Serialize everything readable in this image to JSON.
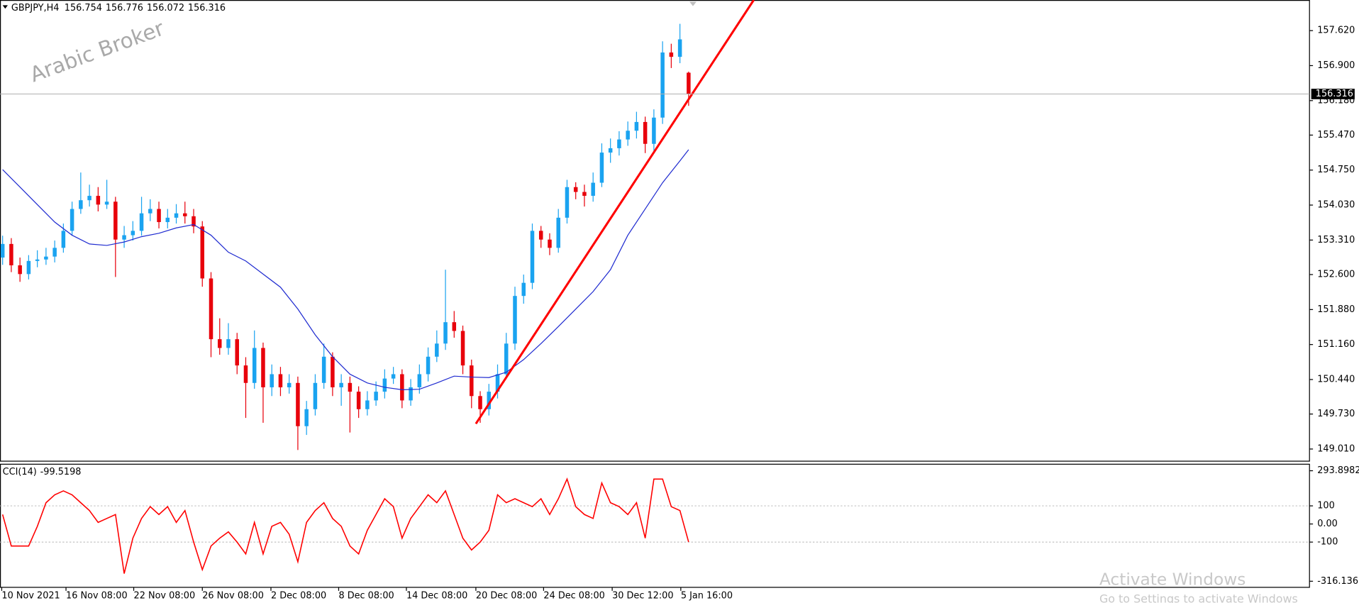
{
  "chart_data": {
    "type": "candlestick",
    "symbol": "GBPJPY,H4",
    "watermark": "Arabic Broker",
    "up_color": "#1aa3f0",
    "down_color": "#e8000b",
    "xlim": [
      -0.3,
      150.5
    ],
    "ylim": [
      148.76,
      158.25
    ],
    "yticks": [
      {
        "value": 157.62,
        "label": "157.620"
      },
      {
        "value": 156.9,
        "label": "156.900"
      },
      {
        "value": 156.18,
        "label": "156.180"
      },
      {
        "value": 155.47,
        "label": "155.470"
      },
      {
        "value": 154.75,
        "label": "154.750"
      },
      {
        "value": 154.03,
        "label": "154.030"
      },
      {
        "value": 153.31,
        "label": "153.310"
      },
      {
        "value": 152.6,
        "label": "152.600"
      },
      {
        "value": 151.88,
        "label": "151.880"
      },
      {
        "value": 151.16,
        "label": "151.160"
      },
      {
        "value": 150.44,
        "label": "150.440"
      },
      {
        "value": 149.73,
        "label": "149.730"
      },
      {
        "value": 149.01,
        "label": "149.010"
      }
    ],
    "xticks": [
      {
        "value": -0.1,
        "label": "10 Nov 2021"
      },
      {
        "value": 7.3,
        "label": "16 Nov 08:00"
      },
      {
        "value": 15.1,
        "label": "22 Nov 08:00"
      },
      {
        "value": 23,
        "label": "26 Nov 08:00"
      },
      {
        "value": 30.9,
        "label": "2 Dec 08:00"
      },
      {
        "value": 38.7,
        "label": "8 Dec 08:00"
      },
      {
        "value": 46.5,
        "label": "14 Dec 08:00"
      },
      {
        "value": 54.5,
        "label": "20 Dec 08:00"
      },
      {
        "value": 62.3,
        "label": "24 Dec 08:00"
      },
      {
        "value": 70.2,
        "label": "30 Dec 12:00"
      },
      {
        "value": 78.1,
        "label": "5 Jan 16:00"
      }
    ],
    "candles": [
      [
        152.95,
        153.4,
        152.8,
        153.23
      ],
      [
        153.23,
        153.35,
        152.65,
        152.79
      ],
      [
        152.79,
        152.95,
        152.45,
        152.61
      ],
      [
        152.61,
        153.0,
        152.5,
        152.88
      ],
      [
        152.88,
        153.1,
        152.75,
        152.91
      ],
      [
        152.91,
        153.15,
        152.8,
        152.97
      ],
      [
        152.97,
        153.3,
        152.85,
        153.15
      ],
      [
        153.15,
        153.65,
        153.05,
        153.5
      ],
      [
        153.5,
        154.1,
        153.4,
        153.95
      ],
      [
        153.95,
        154.7,
        153.85,
        154.13
      ],
      [
        154.13,
        154.45,
        154.0,
        154.22
      ],
      [
        154.22,
        154.4,
        153.9,
        154.04
      ],
      [
        154.04,
        154.55,
        153.95,
        154.1
      ],
      [
        154.1,
        154.2,
        152.55,
        153.32
      ],
      [
        153.32,
        153.6,
        153.15,
        153.41
      ],
      [
        153.41,
        153.7,
        153.3,
        153.5
      ],
      [
        153.5,
        154.2,
        153.4,
        153.86
      ],
      [
        153.86,
        154.15,
        153.7,
        153.95
      ],
      [
        153.95,
        154.1,
        153.55,
        153.68
      ],
      [
        153.68,
        153.95,
        153.55,
        153.77
      ],
      [
        153.77,
        154.05,
        153.65,
        153.86
      ],
      [
        153.86,
        154.1,
        153.65,
        153.8
      ],
      [
        153.8,
        153.95,
        153.45,
        153.59
      ],
      [
        153.59,
        153.7,
        152.35,
        152.52
      ],
      [
        152.52,
        152.65,
        150.9,
        151.27
      ],
      [
        151.27,
        151.7,
        150.95,
        151.09
      ],
      [
        151.09,
        151.6,
        150.95,
        151.27
      ],
      [
        151.27,
        151.4,
        150.55,
        150.73
      ],
      [
        150.73,
        150.9,
        149.65,
        150.37
      ],
      [
        150.37,
        151.45,
        150.25,
        151.09
      ],
      [
        151.09,
        151.2,
        149.55,
        150.28
      ],
      [
        150.28,
        150.75,
        150.1,
        150.55
      ],
      [
        150.55,
        150.7,
        150.1,
        150.28
      ],
      [
        150.28,
        150.55,
        150.15,
        150.37
      ],
      [
        150.37,
        150.5,
        148.99,
        149.48
      ],
      [
        149.48,
        150.0,
        149.3,
        149.83
      ],
      [
        149.83,
        150.55,
        149.7,
        150.37
      ],
      [
        150.37,
        151.18,
        150.25,
        150.91
      ],
      [
        150.91,
        151.0,
        150.1,
        150.28
      ],
      [
        150.28,
        150.55,
        149.9,
        150.37
      ],
      [
        150.37,
        150.5,
        149.35,
        150.19
      ],
      [
        150.19,
        150.3,
        149.65,
        149.83
      ],
      [
        149.83,
        150.2,
        149.7,
        150.01
      ],
      [
        150.01,
        150.4,
        149.9,
        150.19
      ],
      [
        150.19,
        150.65,
        150.05,
        150.46
      ],
      [
        150.46,
        150.7,
        150.35,
        150.55
      ],
      [
        150.55,
        150.65,
        149.85,
        150.01
      ],
      [
        150.01,
        150.45,
        149.9,
        150.28
      ],
      [
        150.28,
        150.75,
        150.15,
        150.55
      ],
      [
        150.55,
        151.1,
        150.4,
        150.91
      ],
      [
        150.91,
        151.45,
        150.8,
        151.18
      ],
      [
        151.18,
        152.7,
        151.05,
        151.62
      ],
      [
        151.62,
        151.85,
        151.3,
        151.44
      ],
      [
        151.44,
        151.55,
        150.55,
        150.73
      ],
      [
        150.73,
        150.85,
        149.85,
        150.1
      ],
      [
        150.1,
        150.2,
        149.55,
        149.83
      ],
      [
        149.83,
        150.35,
        149.7,
        150.19
      ],
      [
        150.19,
        150.75,
        150.05,
        150.55
      ],
      [
        150.55,
        151.4,
        150.45,
        151.18
      ],
      [
        151.18,
        152.35,
        151.05,
        152.16
      ],
      [
        152.16,
        152.6,
        152.0,
        152.43
      ],
      [
        152.43,
        153.65,
        152.3,
        153.5
      ],
      [
        153.5,
        153.6,
        153.15,
        153.32
      ],
      [
        153.32,
        153.45,
        153.0,
        153.15
      ],
      [
        153.15,
        153.95,
        153.05,
        153.77
      ],
      [
        153.77,
        154.55,
        153.65,
        154.4
      ],
      [
        154.4,
        154.5,
        154.15,
        154.3
      ],
      [
        154.3,
        154.45,
        154.0,
        154.22
      ],
      [
        154.22,
        154.7,
        154.1,
        154.49
      ],
      [
        154.49,
        155.3,
        154.4,
        155.11
      ],
      [
        155.11,
        155.4,
        154.9,
        155.2
      ],
      [
        155.2,
        155.55,
        155.05,
        155.38
      ],
      [
        155.38,
        155.75,
        155.25,
        155.56
      ],
      [
        155.56,
        155.95,
        155.4,
        155.74
      ],
      [
        155.74,
        155.85,
        155.1,
        155.29
      ],
      [
        155.29,
        156.0,
        155.15,
        155.83
      ],
      [
        155.83,
        157.4,
        155.7,
        157.17
      ],
      [
        157.17,
        157.35,
        156.85,
        157.08
      ],
      [
        157.08,
        157.76,
        156.95,
        157.44
      ],
      [
        156.754,
        156.776,
        156.072,
        156.316
      ]
    ],
    "ma": {
      "color": "#1f2bd0",
      "x": [
        0,
        2,
        4,
        6,
        8,
        10,
        12,
        14,
        16,
        18,
        20,
        22,
        24,
        26,
        28,
        30,
        32,
        34,
        36,
        38,
        40,
        42,
        44,
        46,
        48,
        50,
        52,
        54,
        56,
        58,
        60,
        62,
        64,
        66,
        68,
        70,
        72,
        74,
        76,
        78,
        79
      ],
      "values": [
        154.76,
        154.4,
        154.04,
        153.68,
        153.41,
        153.23,
        153.2,
        153.27,
        153.38,
        153.45,
        153.56,
        153.63,
        153.41,
        153.06,
        152.88,
        152.61,
        152.34,
        151.89,
        151.36,
        150.91,
        150.55,
        150.37,
        150.28,
        150.23,
        150.24,
        150.37,
        150.51,
        150.49,
        150.48,
        150.59,
        150.85,
        151.18,
        151.53,
        151.89,
        152.25,
        152.7,
        153.41,
        153.95,
        154.49,
        154.94,
        155.17
      ]
    },
    "trendline": {
      "color": "#ff0000",
      "x": [
        54.5,
        86.5
      ],
      "values": [
        149.53,
        158.25
      ]
    },
    "indicator": {
      "name": "CCI(14)",
      "value": -99.5198,
      "color": "#ff0000",
      "ylim": [
        -349.8,
        332.3
      ],
      "yticks": [
        293.8982,
        100,
        {
          "value": 0,
          "label": "0.00"
        },
        -100,
        -316.1363
      ],
      "levels": [
        100,
        -100
      ],
      "values": [
        52.2,
        -121.8,
        -121.8,
        -121.8,
        -13.1,
        117.5,
        161,
        182.7,
        161,
        117.5,
        74,
        8.7,
        30.5,
        52.2,
        -274,
        -78.3,
        30.5,
        95.7,
        52.2,
        95.7,
        8.7,
        74,
        -100,
        -252.3,
        -121.8,
        -78.3,
        -43.5,
        -100,
        -165.3,
        8.7,
        -165.3,
        -13.1,
        8.7,
        -56.6,
        -208.8,
        8.7,
        74,
        117.5,
        30.5,
        -13.1,
        -121.8,
        -165.3,
        -34.8,
        52.2,
        139.2,
        95.7,
        -78.3,
        30.5,
        95.7,
        161,
        117.5,
        182.7,
        52.2,
        -78.3,
        -143.6,
        -100,
        -34.8,
        161,
        117.5,
        139.2,
        117.5,
        95.7,
        139.2,
        52.2,
        139.2,
        248,
        95.7,
        52.2,
        30.5,
        226.2,
        117.5,
        95.7,
        52.2,
        117.5,
        -78.3,
        248,
        248,
        95.7,
        74,
        -99.5198
      ]
    }
  },
  "overlay": {
    "title": "Activate Windows",
    "subtitle": "Go to Settings to activate Windows"
  }
}
